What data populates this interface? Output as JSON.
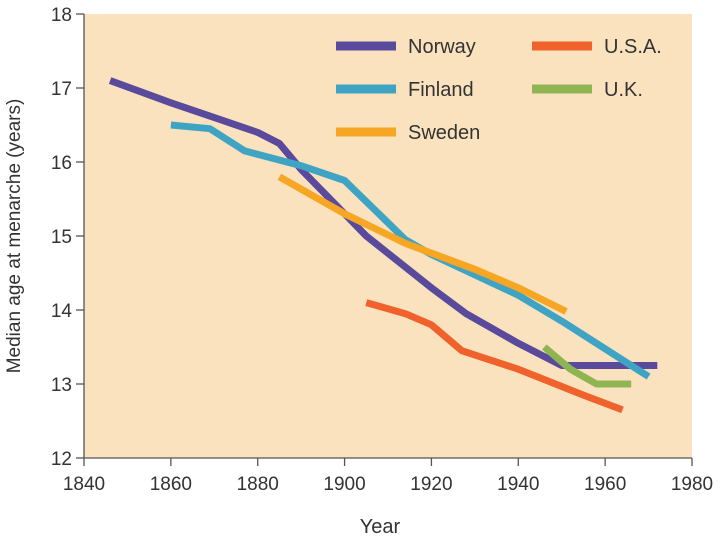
{
  "chart_data": {
    "type": "line",
    "title": "",
    "xlabel": "Year",
    "ylabel": "Median age at menarche (years)",
    "xlim": [
      1840,
      1980
    ],
    "ylim": [
      12,
      18
    ],
    "xticks": [
      1840,
      1860,
      1880,
      1900,
      1920,
      1940,
      1960,
      1980
    ],
    "yticks": [
      12,
      13,
      14,
      15,
      16,
      17,
      18
    ],
    "grid": false,
    "background_color": "#fbe2bf",
    "legend_position": "top-right",
    "series": [
      {
        "name": "Norway",
        "color": "#5a4a9c",
        "points": [
          [
            1846,
            17.1
          ],
          [
            1860,
            16.8
          ],
          [
            1870,
            16.6
          ],
          [
            1880,
            16.4
          ],
          [
            1885,
            16.25
          ],
          [
            1890,
            15.9
          ],
          [
            1900,
            15.3
          ],
          [
            1905,
            15.0
          ],
          [
            1920,
            14.3
          ],
          [
            1928,
            13.95
          ],
          [
            1940,
            13.55
          ],
          [
            1950,
            13.25
          ],
          [
            1972,
            13.25
          ]
        ]
      },
      {
        "name": "Finland",
        "color": "#3fa4c4",
        "points": [
          [
            1860,
            16.5
          ],
          [
            1869,
            16.45
          ],
          [
            1877,
            16.15
          ],
          [
            1890,
            15.95
          ],
          [
            1900,
            15.75
          ],
          [
            1914,
            14.95
          ],
          [
            1920,
            14.75
          ],
          [
            1940,
            14.2
          ],
          [
            1950,
            13.85
          ],
          [
            1970,
            13.1
          ]
        ]
      },
      {
        "name": "Sweden",
        "color": "#f6a623",
        "points": [
          [
            1885,
            15.8
          ],
          [
            1900,
            15.3
          ],
          [
            1914,
            14.9
          ],
          [
            1930,
            14.55
          ],
          [
            1940,
            14.3
          ],
          [
            1951,
            13.98
          ]
        ]
      },
      {
        "name": "U.S.A.",
        "color": "#f0622b",
        "points": [
          [
            1905,
            14.1
          ],
          [
            1914,
            13.95
          ],
          [
            1920,
            13.8
          ],
          [
            1927,
            13.45
          ],
          [
            1940,
            13.2
          ],
          [
            1955,
            12.85
          ],
          [
            1964,
            12.65
          ]
        ]
      },
      {
        "name": "U.K.",
        "color": "#8fb553",
        "points": [
          [
            1946,
            13.5
          ],
          [
            1952,
            13.2
          ],
          [
            1958,
            13.0
          ],
          [
            1966,
            13.0
          ]
        ]
      }
    ]
  }
}
